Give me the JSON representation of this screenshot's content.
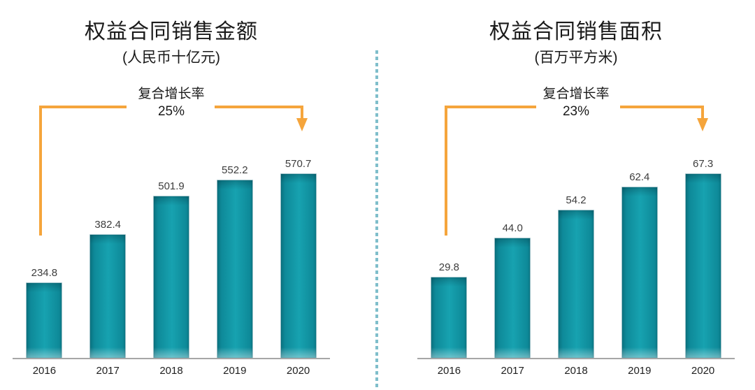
{
  "colors": {
    "bar": "#1295A4",
    "bar_edge": "#0A7280",
    "bar_highlight": "#17A2B0",
    "accent_arrow": "#F5A53C",
    "divider": "#7FBECB",
    "axis": "#A6A6A6",
    "title_text": "#1A1A1A",
    "label_text": "#3D3D3D"
  },
  "chart_data": [
    {
      "type": "bar",
      "title": "权益合同销售金额",
      "subtitle": "(人民币十亿元)",
      "annotation_label": "复合增长率",
      "annotation_value": "25%",
      "categories": [
        "2016",
        "2017",
        "2018",
        "2019",
        "2020"
      ],
      "values": [
        234.8,
        382.4,
        501.9,
        552.2,
        570.7
      ],
      "value_labels": [
        "234.8",
        "382.4",
        "501.9",
        "552.2",
        "570.7"
      ],
      "ylim": [
        0,
        600
      ],
      "grid": false,
      "legend": "none",
      "data_labels": true
    },
    {
      "type": "bar",
      "title": "权益合同销售面积",
      "subtitle": "(百万平方米)",
      "annotation_label": "复合增长率",
      "annotation_value": "23%",
      "categories": [
        "2016",
        "2017",
        "2018",
        "2019",
        "2020"
      ],
      "values": [
        29.8,
        44.0,
        54.2,
        62.4,
        67.3
      ],
      "value_labels": [
        "29.8",
        "44.0",
        "54.2",
        "62.4",
        "67.3"
      ],
      "ylim": [
        0,
        70
      ],
      "grid": false,
      "legend": "none",
      "data_labels": true
    }
  ]
}
